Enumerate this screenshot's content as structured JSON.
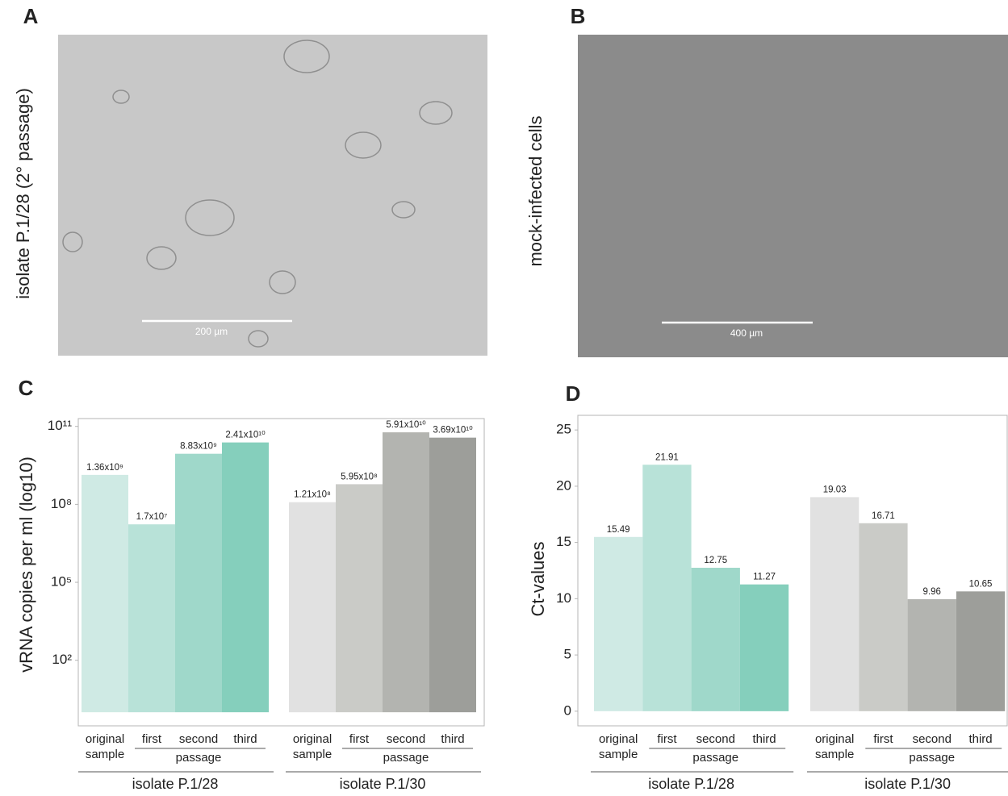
{
  "micrographs": [
    {
      "panel": "A",
      "label": "isolate P.1/28 (2° passage)",
      "scale_bar": "200 µm"
    },
    {
      "panel": "B",
      "label": "mock-infected cells",
      "scale_bar": "400 µm"
    }
  ],
  "chart_data": [
    {
      "type": "bar",
      "panel": "C",
      "y_label": "vRNA copies per ml (log10)",
      "log_scale": true,
      "categories": [
        "original sample",
        "first",
        "second",
        "third"
      ],
      "category_group": "passage",
      "ylim": [
        0.3,
        200000000000
      ],
      "yticks": [
        {
          "value": 100,
          "label": "10²"
        },
        {
          "value": 100000,
          "label": "10⁵"
        },
        {
          "value": 100000000,
          "label": "10⁸"
        },
        {
          "value": 100000000000,
          "label": "10¹¹"
        }
      ],
      "series": [
        {
          "name": "isolate P.1/28",
          "colors": [
            "#cfeae4",
            "#b8e2d8",
            "#9fd8ca",
            "#85cfbc"
          ],
          "values": [
            1360000000,
            17000000,
            8830000000,
            24100000000
          ],
          "value_labels": [
            "1.36x10⁹",
            "1.7x10⁷",
            "8.83x10⁹",
            "2.41x10¹⁰"
          ]
        },
        {
          "name": "isolate P.1/30",
          "colors": [
            "#e1e1e1",
            "#cacbc7",
            "#b3b4b0",
            "#9d9e9a"
          ],
          "values": [
            121000000,
            595000000,
            59100000000,
            36900000000
          ],
          "value_labels": [
            "1.21x10⁸",
            "5.95x10⁸",
            "5.91x10¹⁰",
            "3.69x10¹⁰"
          ]
        }
      ]
    },
    {
      "type": "bar",
      "panel": "D",
      "y_label": "Ct-values",
      "log_scale": false,
      "categories": [
        "original sample",
        "first",
        "second",
        "third"
      ],
      "category_group": "passage",
      "ylim": [
        -1.3,
        26.3
      ],
      "yticks": [
        0,
        5,
        10,
        15,
        20,
        25
      ],
      "series": [
        {
          "name": "isolate P.1/28",
          "colors": [
            "#cfeae4",
            "#b8e2d8",
            "#9fd8ca",
            "#85cfbc"
          ],
          "values": [
            15.49,
            21.91,
            12.75,
            11.27
          ]
        },
        {
          "name": "isolate P.1/30",
          "colors": [
            "#e1e1e1",
            "#cacbc7",
            "#b3b4b0",
            "#9d9e9a"
          ],
          "values": [
            19.03,
            16.71,
            9.96,
            10.65
          ]
        }
      ]
    }
  ]
}
